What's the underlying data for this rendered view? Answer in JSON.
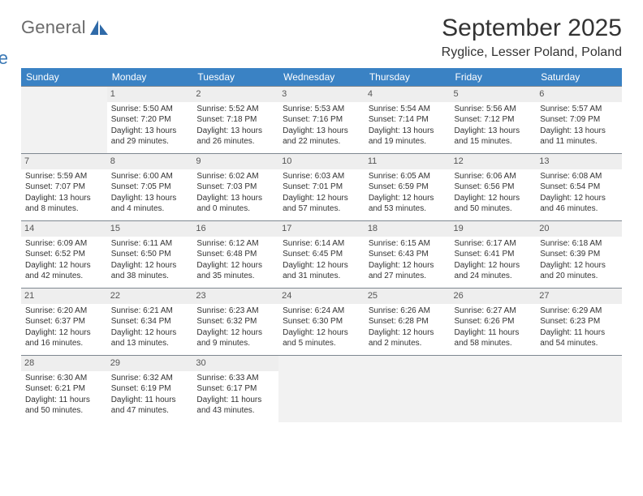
{
  "logo": {
    "word1": "General",
    "word2": "Blue",
    "color_gray": "#6b6b6b",
    "color_blue": "#3a78b5"
  },
  "title": "September 2025",
  "subtitle": "Ryglice, Lesser Poland, Poland",
  "header_bg": "#3a82c4",
  "daynum_bg": "#eeeeee",
  "empty_bg": "#f2f2f2",
  "border_color": "#7e8790",
  "weekdays": [
    "Sunday",
    "Monday",
    "Tuesday",
    "Wednesday",
    "Thursday",
    "Friday",
    "Saturday"
  ],
  "weeks": [
    [
      null,
      {
        "n": "1",
        "sr": "Sunrise: 5:50 AM",
        "ss": "Sunset: 7:20 PM",
        "dl": "Daylight: 13 hours and 29 minutes."
      },
      {
        "n": "2",
        "sr": "Sunrise: 5:52 AM",
        "ss": "Sunset: 7:18 PM",
        "dl": "Daylight: 13 hours and 26 minutes."
      },
      {
        "n": "3",
        "sr": "Sunrise: 5:53 AM",
        "ss": "Sunset: 7:16 PM",
        "dl": "Daylight: 13 hours and 22 minutes."
      },
      {
        "n": "4",
        "sr": "Sunrise: 5:54 AM",
        "ss": "Sunset: 7:14 PM",
        "dl": "Daylight: 13 hours and 19 minutes."
      },
      {
        "n": "5",
        "sr": "Sunrise: 5:56 AM",
        "ss": "Sunset: 7:12 PM",
        "dl": "Daylight: 13 hours and 15 minutes."
      },
      {
        "n": "6",
        "sr": "Sunrise: 5:57 AM",
        "ss": "Sunset: 7:09 PM",
        "dl": "Daylight: 13 hours and 11 minutes."
      }
    ],
    [
      {
        "n": "7",
        "sr": "Sunrise: 5:59 AM",
        "ss": "Sunset: 7:07 PM",
        "dl": "Daylight: 13 hours and 8 minutes."
      },
      {
        "n": "8",
        "sr": "Sunrise: 6:00 AM",
        "ss": "Sunset: 7:05 PM",
        "dl": "Daylight: 13 hours and 4 minutes."
      },
      {
        "n": "9",
        "sr": "Sunrise: 6:02 AM",
        "ss": "Sunset: 7:03 PM",
        "dl": "Daylight: 13 hours and 0 minutes."
      },
      {
        "n": "10",
        "sr": "Sunrise: 6:03 AM",
        "ss": "Sunset: 7:01 PM",
        "dl": "Daylight: 12 hours and 57 minutes."
      },
      {
        "n": "11",
        "sr": "Sunrise: 6:05 AM",
        "ss": "Sunset: 6:59 PM",
        "dl": "Daylight: 12 hours and 53 minutes."
      },
      {
        "n": "12",
        "sr": "Sunrise: 6:06 AM",
        "ss": "Sunset: 6:56 PM",
        "dl": "Daylight: 12 hours and 50 minutes."
      },
      {
        "n": "13",
        "sr": "Sunrise: 6:08 AM",
        "ss": "Sunset: 6:54 PM",
        "dl": "Daylight: 12 hours and 46 minutes."
      }
    ],
    [
      {
        "n": "14",
        "sr": "Sunrise: 6:09 AM",
        "ss": "Sunset: 6:52 PM",
        "dl": "Daylight: 12 hours and 42 minutes."
      },
      {
        "n": "15",
        "sr": "Sunrise: 6:11 AM",
        "ss": "Sunset: 6:50 PM",
        "dl": "Daylight: 12 hours and 38 minutes."
      },
      {
        "n": "16",
        "sr": "Sunrise: 6:12 AM",
        "ss": "Sunset: 6:48 PM",
        "dl": "Daylight: 12 hours and 35 minutes."
      },
      {
        "n": "17",
        "sr": "Sunrise: 6:14 AM",
        "ss": "Sunset: 6:45 PM",
        "dl": "Daylight: 12 hours and 31 minutes."
      },
      {
        "n": "18",
        "sr": "Sunrise: 6:15 AM",
        "ss": "Sunset: 6:43 PM",
        "dl": "Daylight: 12 hours and 27 minutes."
      },
      {
        "n": "19",
        "sr": "Sunrise: 6:17 AM",
        "ss": "Sunset: 6:41 PM",
        "dl": "Daylight: 12 hours and 24 minutes."
      },
      {
        "n": "20",
        "sr": "Sunrise: 6:18 AM",
        "ss": "Sunset: 6:39 PM",
        "dl": "Daylight: 12 hours and 20 minutes."
      }
    ],
    [
      {
        "n": "21",
        "sr": "Sunrise: 6:20 AM",
        "ss": "Sunset: 6:37 PM",
        "dl": "Daylight: 12 hours and 16 minutes."
      },
      {
        "n": "22",
        "sr": "Sunrise: 6:21 AM",
        "ss": "Sunset: 6:34 PM",
        "dl": "Daylight: 12 hours and 13 minutes."
      },
      {
        "n": "23",
        "sr": "Sunrise: 6:23 AM",
        "ss": "Sunset: 6:32 PM",
        "dl": "Daylight: 12 hours and 9 minutes."
      },
      {
        "n": "24",
        "sr": "Sunrise: 6:24 AM",
        "ss": "Sunset: 6:30 PM",
        "dl": "Daylight: 12 hours and 5 minutes."
      },
      {
        "n": "25",
        "sr": "Sunrise: 6:26 AM",
        "ss": "Sunset: 6:28 PM",
        "dl": "Daylight: 12 hours and 2 minutes."
      },
      {
        "n": "26",
        "sr": "Sunrise: 6:27 AM",
        "ss": "Sunset: 6:26 PM",
        "dl": "Daylight: 11 hours and 58 minutes."
      },
      {
        "n": "27",
        "sr": "Sunrise: 6:29 AM",
        "ss": "Sunset: 6:23 PM",
        "dl": "Daylight: 11 hours and 54 minutes."
      }
    ],
    [
      {
        "n": "28",
        "sr": "Sunrise: 6:30 AM",
        "ss": "Sunset: 6:21 PM",
        "dl": "Daylight: 11 hours and 50 minutes."
      },
      {
        "n": "29",
        "sr": "Sunrise: 6:32 AM",
        "ss": "Sunset: 6:19 PM",
        "dl": "Daylight: 11 hours and 47 minutes."
      },
      {
        "n": "30",
        "sr": "Sunrise: 6:33 AM",
        "ss": "Sunset: 6:17 PM",
        "dl": "Daylight: 11 hours and 43 minutes."
      },
      null,
      null,
      null,
      null
    ]
  ]
}
